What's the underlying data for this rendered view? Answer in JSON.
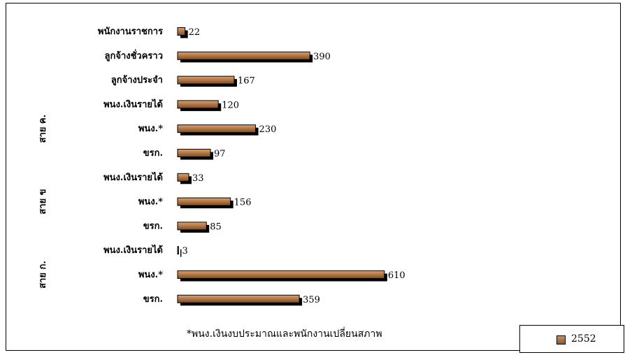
{
  "chart_data": {
    "type": "bar",
    "orientation": "horizontal",
    "categories": [
      "พนักงานราชการ",
      "ลูกจ้างชั่วคราว",
      "ลูกจ้างประจำ",
      "พนง.เงินรายได้",
      "พนง.*",
      "ขรก.",
      "พนง.เงินรายได้",
      "พนง.*",
      "ขรก.",
      "พนง.เงินรายได้",
      "พนง.*",
      "ขรก."
    ],
    "groups": [
      {
        "label": "สาย ค.",
        "categories": [
          3,
          4,
          5
        ]
      },
      {
        "label": "สาย ข",
        "categories": [
          6,
          7,
          8
        ]
      },
      {
        "label": "สาย ก.",
        "categories": [
          9,
          10,
          11
        ]
      }
    ],
    "series": [
      {
        "name": "2552",
        "values": [
          22,
          390,
          167,
          120,
          230,
          97,
          33,
          156,
          85,
          3,
          610,
          359
        ]
      }
    ],
    "xlim": [
      0,
      620
    ],
    "grid": false,
    "legend": "bottom-right",
    "footnote": "*พนง.เงินงบประมาณและพนักงานเปลี่ยนสภาพ"
  },
  "colors": {
    "bar_top": "#c9925f",
    "bar_bottom": "#8c5a33",
    "bar_shadow": "#000000"
  }
}
